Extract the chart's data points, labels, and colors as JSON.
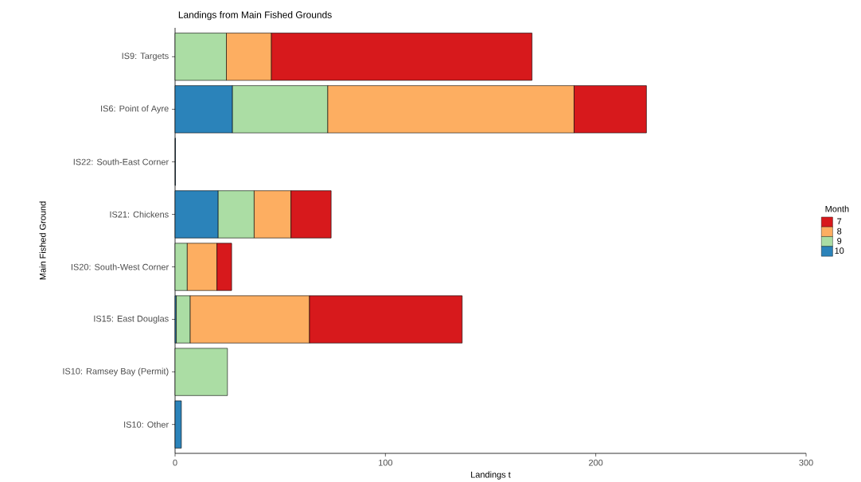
{
  "chart_data": {
    "type": "bar",
    "orientation": "horizontal",
    "stacked": true,
    "title": "Landings from Main Fished Grounds",
    "xlabel": "Landings t",
    "ylabel": "Main Fished Ground",
    "legend_title": "Month",
    "legend": "right",
    "grid": false,
    "categories": [
      "IS9: Targets",
      "IS6: Point of Ayre",
      "IS22: South-East Corner",
      "IS21: Chickens",
      "IS20: South-West Corner",
      "IS15: East Douglas",
      "IS10: Ramsey Bay (Permit)",
      "IS10: Other"
    ],
    "xlim": [
      0,
      300
    ],
    "xticks": [
      0,
      100,
      200,
      300
    ],
    "series": [
      {
        "name": "10",
        "color": "#2b83ba",
        "values": [
          null,
          27.3,
          0.2,
          20.5,
          null,
          0.6,
          null,
          3.0
        ]
      },
      {
        "name": "9",
        "color": "#abdda4",
        "values": [
          24.4,
          45.3,
          null,
          17.1,
          5.8,
          6.6,
          24.9,
          null
        ]
      },
      {
        "name": "8",
        "color": "#fdae61",
        "values": [
          21.4,
          117.1,
          null,
          17.5,
          14.1,
          56.7,
          null,
          null
        ]
      },
      {
        "name": "7",
        "color": "#d7191c",
        "values": [
          123.9,
          34.4,
          null,
          19.1,
          7.0,
          72.6,
          null,
          null
        ]
      }
    ]
  }
}
